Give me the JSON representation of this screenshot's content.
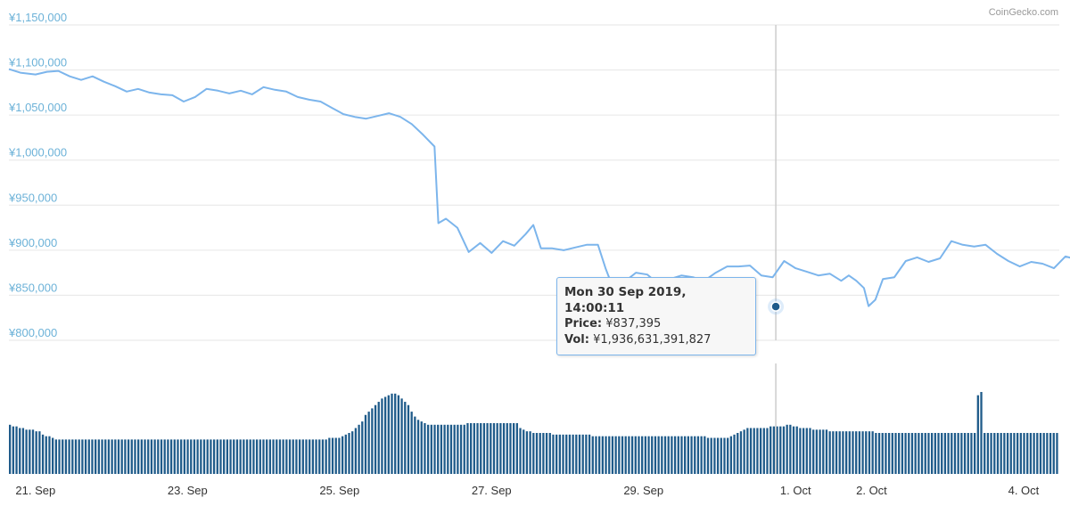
{
  "credit": "CoinGecko.com",
  "colors": {
    "line": "#7cb5ec",
    "bars": "#1f5b8a",
    "grid": "#e6e6e6",
    "crosshair": "#cccccc",
    "axis_text": "#6cb2d8",
    "marker": "#1f5b8a"
  },
  "tooltip": {
    "title": "Mon 30 Sep 2019, 14:00:11",
    "price_label": "Price:",
    "price_value": "¥837,395",
    "vol_label": "Vol:",
    "vol_value": "¥1,936,631,391,827"
  },
  "chart_data": {
    "type": "line",
    "title": "",
    "currency": "JPY",
    "y_ticks": [
      "¥1,150,000",
      "¥1,100,000",
      "¥1,050,000",
      "¥1,000,000",
      "¥950,000",
      "¥900,000",
      "¥850,000",
      "¥800,000"
    ],
    "ylim": [
      800000,
      1150000
    ],
    "x_ticks": [
      "21. Sep",
      "23. Sep",
      "25. Sep",
      "27. Sep",
      "29. Sep",
      "1. Oct",
      "2. Oct",
      "4. Oct"
    ],
    "x_tick_day_offsets": [
      0.5,
      2.5,
      4.5,
      6.5,
      8.5,
      10.5,
      11.5,
      13.5
    ],
    "x_range_days": [
      0.15,
      13.97
    ],
    "grid": true,
    "highlight": {
      "day": 10.24,
      "price": 837395
    },
    "series": [
      {
        "type": "line",
        "points": [
          [
            0.15,
            1101000
          ],
          [
            0.3,
            1097000
          ],
          [
            0.5,
            1095000
          ],
          [
            0.65,
            1098000
          ],
          [
            0.8,
            1099000
          ],
          [
            0.95,
            1093000
          ],
          [
            1.1,
            1089000
          ],
          [
            1.25,
            1093000
          ],
          [
            1.4,
            1087000
          ],
          [
            1.55,
            1082000
          ],
          [
            1.7,
            1076000
          ],
          [
            1.85,
            1079000
          ],
          [
            2.0,
            1075000
          ],
          [
            2.15,
            1073000
          ],
          [
            2.3,
            1072000
          ],
          [
            2.45,
            1065000
          ],
          [
            2.6,
            1070000
          ],
          [
            2.75,
            1079000
          ],
          [
            2.9,
            1077000
          ],
          [
            3.05,
            1074000
          ],
          [
            3.2,
            1077000
          ],
          [
            3.35,
            1073000
          ],
          [
            3.5,
            1081000
          ],
          [
            3.65,
            1078000
          ],
          [
            3.8,
            1076000
          ],
          [
            3.95,
            1070000
          ],
          [
            4.1,
            1067000
          ],
          [
            4.25,
            1065000
          ],
          [
            4.4,
            1058000
          ],
          [
            4.55,
            1051000
          ],
          [
            4.7,
            1048000
          ],
          [
            4.85,
            1046000
          ],
          [
            5.0,
            1049000
          ],
          [
            5.15,
            1052000
          ],
          [
            5.3,
            1048000
          ],
          [
            5.45,
            1040000
          ],
          [
            5.6,
            1028000
          ],
          [
            5.75,
            1015000
          ],
          [
            5.8,
            930000
          ],
          [
            5.9,
            935000
          ],
          [
            6.05,
            925000
          ],
          [
            6.2,
            898000
          ],
          [
            6.35,
            908000
          ],
          [
            6.5,
            897000
          ],
          [
            6.65,
            910000
          ],
          [
            6.8,
            905000
          ],
          [
            6.95,
            918000
          ],
          [
            7.05,
            928000
          ],
          [
            7.15,
            902000
          ],
          [
            7.3,
            902000
          ],
          [
            7.45,
            900000
          ],
          [
            7.6,
            903000
          ],
          [
            7.75,
            906000
          ],
          [
            7.9,
            906000
          ],
          [
            8.0,
            880000
          ],
          [
            8.1,
            858000
          ],
          [
            8.25,
            865000
          ],
          [
            8.4,
            875000
          ],
          [
            8.55,
            873000
          ],
          [
            8.7,
            862000
          ],
          [
            8.85,
            868000
          ],
          [
            9.0,
            872000
          ],
          [
            9.15,
            870000
          ],
          [
            9.3,
            866000
          ],
          [
            9.45,
            875000
          ],
          [
            9.6,
            882000
          ],
          [
            9.75,
            882000
          ],
          [
            9.9,
            883000
          ],
          [
            10.05,
            872000
          ],
          [
            10.2,
            870000
          ],
          [
            10.35,
            888000
          ],
          [
            10.5,
            880000
          ],
          [
            10.65,
            876000
          ],
          [
            10.8,
            872000
          ],
          [
            10.95,
            874000
          ],
          [
            11.1,
            866000
          ],
          [
            11.2,
            872000
          ],
          [
            11.3,
            866000
          ],
          [
            11.4,
            858000
          ],
          [
            11.46,
            838000
          ],
          [
            11.55,
            845000
          ],
          [
            11.65,
            868000
          ],
          [
            11.8,
            870000
          ],
          [
            11.95,
            888000
          ],
          [
            12.1,
            892000
          ],
          [
            12.25,
            887000
          ],
          [
            12.4,
            891000
          ],
          [
            12.55,
            910000
          ],
          [
            12.7,
            906000
          ],
          [
            12.85,
            904000
          ],
          [
            13.0,
            906000
          ],
          [
            13.15,
            896000
          ],
          [
            13.3,
            888000
          ],
          [
            13.45,
            882000
          ],
          [
            13.6,
            887000
          ],
          [
            13.75,
            885000
          ],
          [
            13.9,
            880000
          ],
          [
            14.05,
            893000
          ],
          [
            14.2,
            890000
          ],
          [
            14.35,
            881000
          ],
          [
            14.5,
            872000
          ],
          [
            14.65,
            868000
          ],
          [
            14.8,
            866000
          ]
        ]
      }
    ],
    "volume": {
      "type": "bar",
      "relative_values": [
        30,
        29,
        29,
        28,
        28,
        27,
        27,
        27,
        26,
        26,
        24,
        23,
        23,
        22,
        21,
        21,
        21,
        21,
        21,
        21,
        21,
        21,
        21,
        21,
        21,
        21,
        21,
        21,
        21,
        21,
        21,
        21,
        21,
        21,
        21,
        21,
        21,
        21,
        21,
        21,
        21,
        21,
        21,
        21,
        21,
        21,
        21,
        21,
        21,
        21,
        21,
        21,
        21,
        21,
        21,
        21,
        21,
        21,
        21,
        21,
        21,
        21,
        21,
        21,
        21,
        21,
        21,
        21,
        21,
        21,
        21,
        21,
        21,
        21,
        21,
        21,
        21,
        21,
        21,
        21,
        21,
        21,
        21,
        21,
        21,
        21,
        21,
        21,
        21,
        21,
        21,
        21,
        21,
        21,
        21,
        21,
        21,
        22,
        22,
        22,
        22,
        23,
        24,
        25,
        26,
        28,
        30,
        32,
        36,
        38,
        40,
        42,
        44,
        46,
        47,
        48,
        49,
        49,
        48,
        46,
        44,
        42,
        38,
        35,
        33,
        32,
        31,
        30,
        30,
        30,
        30,
        30,
        30,
        30,
        30,
        30,
        30,
        30,
        30,
        31,
        31,
        31,
        31,
        31,
        31,
        31,
        31,
        31,
        31,
        31,
        31,
        31,
        31,
        31,
        31,
        28,
        27,
        26,
        26,
        25,
        25,
        25,
        25,
        25,
        25,
        24,
        24,
        24,
        24,
        24,
        24,
        24,
        24,
        24,
        24,
        24,
        24,
        23,
        23,
        23,
        23,
        23,
        23,
        23,
        23,
        23,
        23,
        23,
        23,
        23,
        23,
        23,
        23,
        23,
        23,
        23,
        23,
        23,
        23,
        23,
        23,
        23,
        23,
        23,
        23,
        23,
        23,
        23,
        23,
        23,
        23,
        23,
        22,
        22,
        22,
        22,
        22,
        22,
        22,
        23,
        24,
        25,
        26,
        27,
        28,
        28,
        28,
        28,
        28,
        28,
        28,
        29,
        29,
        29,
        29,
        29,
        30,
        30,
        29,
        29,
        28,
        28,
        28,
        28,
        27,
        27,
        27,
        27,
        27,
        26,
        26,
        26,
        26,
        26,
        26,
        26,
        26,
        26,
        26,
        26,
        26,
        26,
        26,
        25,
        25,
        25,
        25,
        25,
        25,
        25,
        25,
        25,
        25,
        25,
        25,
        25,
        25,
        25,
        25,
        25,
        25,
        25,
        25,
        25,
        25,
        25,
        25,
        25,
        25,
        25,
        25,
        25,
        25,
        25,
        48,
        50,
        25,
        25,
        25,
        25,
        25,
        25,
        25,
        25,
        25,
        25,
        25,
        25,
        25,
        25,
        25,
        25,
        25,
        25,
        25,
        25,
        25,
        25,
        25
      ]
    }
  }
}
